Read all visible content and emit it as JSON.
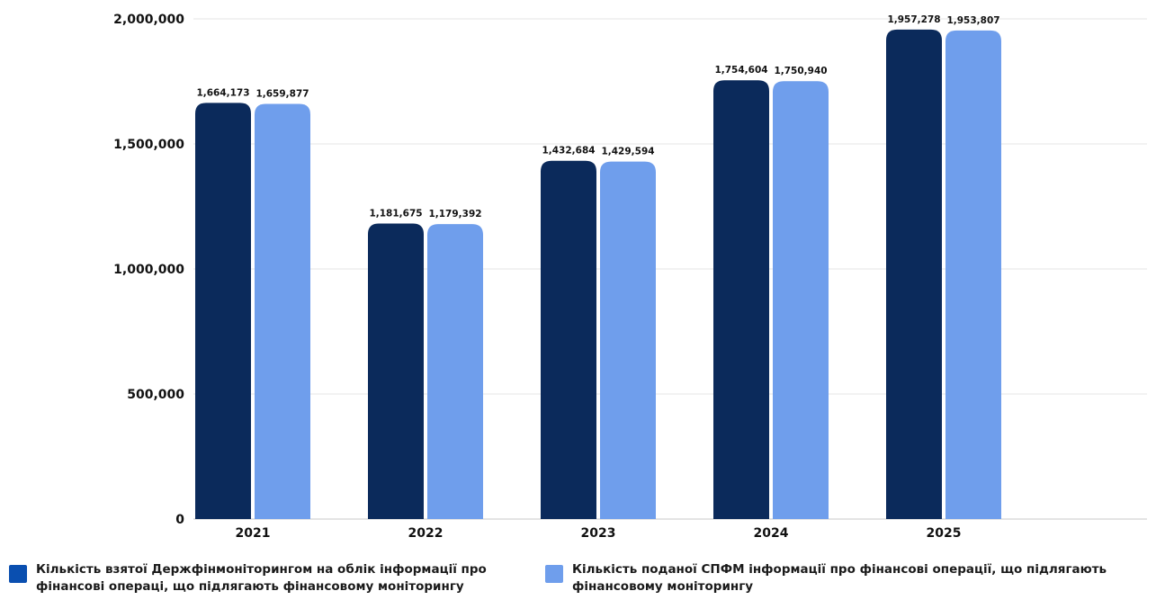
{
  "chart_data": {
    "type": "bar",
    "categories": [
      "2021",
      "2022",
      "2023",
      "2024",
      "2025"
    ],
    "series": [
      {
        "name": "Кількість взятої Держфінмоніторингом на облік інформації про фінансові операці, що підлягають фінансовому моніторингу",
        "values": [
          1664173,
          1181675,
          1432684,
          1754604,
          1957278
        ],
        "labels": [
          "1,664,173",
          "1,181,675",
          "1,432,684",
          "1,754,604",
          "1,957,278"
        ],
        "bar_color": "#0b2a5b",
        "legend_color": "#0a4fb0"
      },
      {
        "name": "Кількість поданої СПФМ інформації про фінансові операції, що підлягають фінансовому моніторингу",
        "values": [
          1659877,
          1179392,
          1429594,
          1750940,
          1953807
        ],
        "labels": [
          "1,659,877",
          "1,179,392",
          "1,429,594",
          "1,750,940",
          "1,953,807"
        ],
        "bar_color": "#6f9eec",
        "legend_color": "#6f9eec"
      }
    ],
    "y_ticks": [
      0,
      500000,
      1000000,
      1500000,
      2000000
    ],
    "y_tick_labels": [
      "0",
      "500,000",
      "1,000,000",
      "1,500,000",
      "2,000,000"
    ],
    "ylim": [
      0,
      2000000
    ],
    "grid": true,
    "legend_position": "bottom"
  }
}
